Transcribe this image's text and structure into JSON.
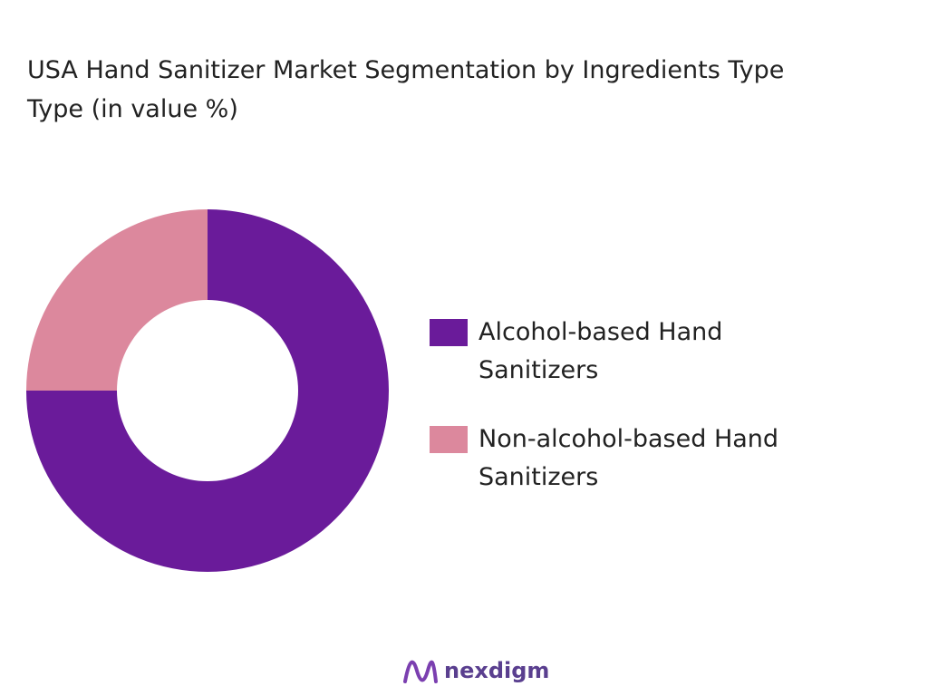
{
  "chart_data": {
    "type": "donut",
    "title": [
      "USA Hand Sanitizer Market Segmentation by Ingredients Type",
      "Type (in value %)"
    ],
    "categories": [
      "Alcohol-based Hand Sanitizers",
      "Non-alcohol-based Hand Sanitizers"
    ],
    "values": [
      75,
      25
    ],
    "colors": [
      "#6a1b9a",
      "#dc889d"
    ],
    "legend": "right"
  },
  "footer": {
    "brand": "nexdigm"
  }
}
